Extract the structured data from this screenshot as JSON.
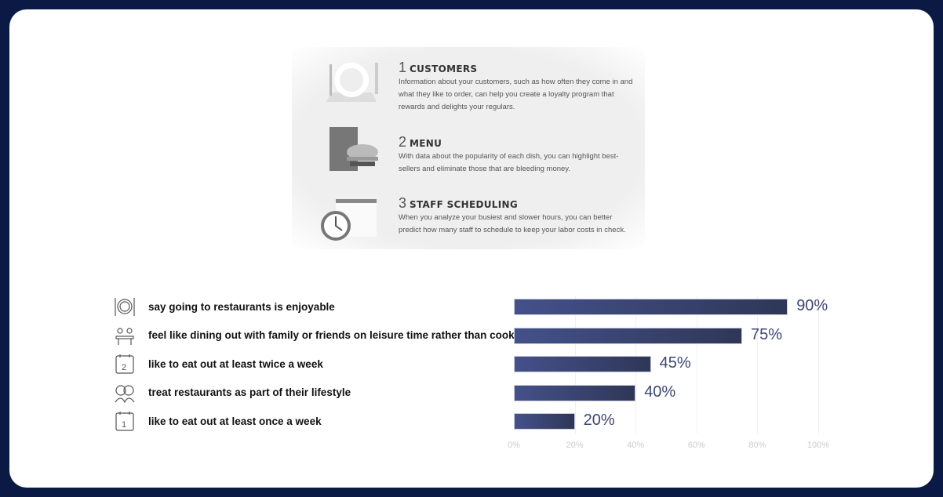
{
  "info": {
    "steps": [
      {
        "num": "1",
        "title": "CUSTOMERS",
        "text": "Information about your customers, such as how often they come in and what they like to order, can help you create a loyalty program that rewards and delights your regulars.",
        "icon": "plate-fork-knife-icon"
      },
      {
        "num": "2",
        "title": "MENU",
        "text": "With data about the popularity of each dish, you can highlight best-sellers and eliminate those that are bleeding money.",
        "icon": "menu-burger-icon"
      },
      {
        "num": "3",
        "title": "STAFF SCHEDULING",
        "text": "When you analyze your busiest and slower hours, you can better predict how many staff to schedule to keep your labor costs in check.",
        "icon": "clock-calendar-icon"
      }
    ]
  },
  "chart_data": {
    "type": "bar",
    "orientation": "horizontal",
    "categories": [
      "say going to restaurants is enjoyable",
      "feel like dining out with family or friends on leisure time rather than cook",
      "like to eat out at least twice a week",
      "treat restaurants as part of their lifestyle",
      "like to eat out at least once a week"
    ],
    "values": [
      90,
      75,
      45,
      40,
      20
    ],
    "value_labels": [
      "90%",
      "75%",
      "45%",
      "40%",
      "20%"
    ],
    "icons": [
      "plate-cutlery-icon",
      "family-dining-icon",
      "calendar-2-icon",
      "couple-icon",
      "calendar-1-icon"
    ],
    "xlim": [
      0,
      100
    ],
    "xticks": [
      "0%",
      "20%",
      "40%",
      "60%",
      "80%",
      "100%"
    ],
    "grid": true,
    "bar_color": "#3d4775"
  }
}
